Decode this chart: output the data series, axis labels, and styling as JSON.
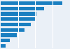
{
  "values": [
    72,
    51,
    42,
    40,
    35,
    28,
    19,
    11,
    6
  ],
  "bar_color": "#1a7fc1",
  "background_color": "#eaf0f7",
  "grid_color": "#ffffff",
  "figsize": [
    1.0,
    0.71
  ],
  "dpi": 100,
  "xlim": [
    0,
    80
  ],
  "bar_height": 0.7
}
